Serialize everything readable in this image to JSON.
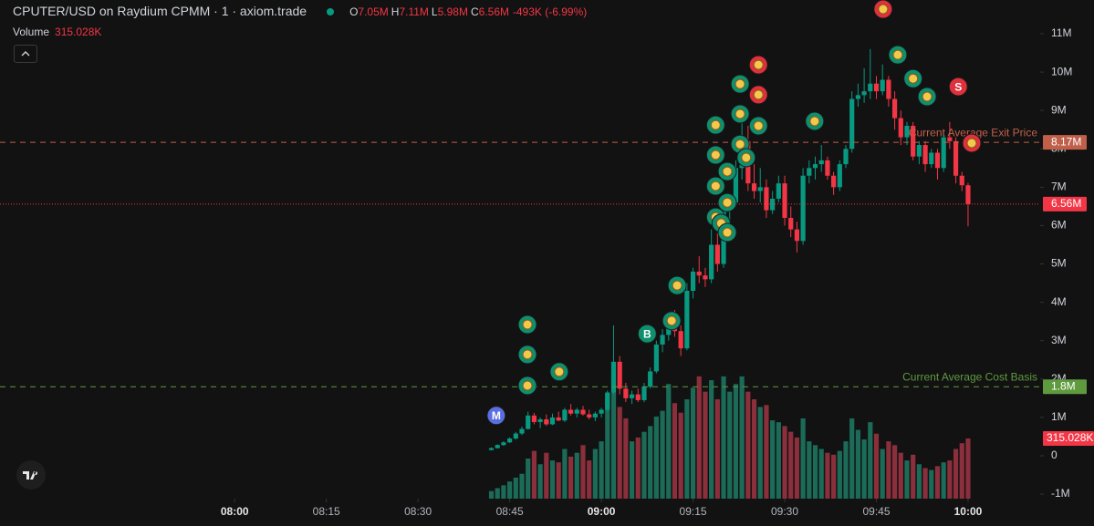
{
  "chart_data": {
    "type": "candlestick",
    "title": "CPUTER/USD on Raydium CPMM · 1 · axiom.trade",
    "legend": [
      {
        "key": "O",
        "value": "7.05M"
      },
      {
        "key": "H",
        "value": "7.11M"
      },
      {
        "key": "L",
        "value": "5.98M"
      },
      {
        "key": "C",
        "value": "6.56M"
      }
    ],
    "change": "-493K (-6.99%)",
    "volume_title": "Volume",
    "volume_label": "315.028K",
    "up_color": "#089981",
    "down_color": "#f23645",
    "volume_up_color": "#1b6b58",
    "volume_down_color": "#8a2f3b",
    "xlim": [
      441.6,
      611.8
    ],
    "xticks": [
      {
        "value": 480,
        "label": "08:00"
      },
      {
        "value": 495,
        "label": "08:15"
      },
      {
        "value": 510,
        "label": "08:30"
      },
      {
        "value": 525,
        "label": "08:45"
      },
      {
        "value": 540,
        "label": "09:00"
      },
      {
        "value": 555,
        "label": "09:15"
      },
      {
        "value": 570,
        "label": "09:30"
      },
      {
        "value": 585,
        "label": "09:45"
      },
      {
        "value": 600,
        "label": "10:00"
      }
    ],
    "ylim": [
      -1117000,
      11879000
    ],
    "yticks": [
      {
        "value": -1000000,
        "label": "-1M"
      },
      0,
      {
        "value": 1000000,
        "label": "1M"
      },
      {
        "value": 2000000,
        "label": "2M"
      },
      {
        "value": 3000000,
        "label": "3M"
      },
      {
        "value": 4000000,
        "label": "4M"
      },
      {
        "value": 5000000,
        "label": "5M"
      },
      {
        "value": 6000000,
        "label": "6M"
      },
      {
        "value": 7000000,
        "label": "7M"
      },
      {
        "value": 8000000,
        "label": "8M"
      },
      {
        "value": 9000000,
        "label": "9M"
      },
      {
        "value": 10000000,
        "label": "10M"
      },
      {
        "value": 11000000,
        "label": "11M"
      }
    ],
    "y2lim": [
      0,
      2610000
    ],
    "x": [
      522,
      523,
      524,
      525,
      526,
      527,
      528,
      529,
      530,
      531,
      532,
      533,
      534,
      535,
      536,
      537,
      538,
      539,
      540,
      541,
      542,
      543,
      544,
      545,
      546,
      547,
      548,
      549,
      550,
      551,
      552,
      553,
      554,
      555,
      556,
      557,
      558,
      559,
      560,
      561,
      562,
      563,
      564,
      565,
      566,
      567,
      568,
      569,
      570,
      571,
      572,
      573,
      574,
      575,
      576,
      577,
      578,
      579,
      580,
      581,
      582,
      583,
      584,
      585,
      586,
      587,
      588,
      589,
      590,
      591,
      592,
      593,
      594,
      595,
      596,
      597,
      598,
      599,
      600
    ],
    "open": [
      150000,
      200000,
      280000,
      350000,
      450000,
      580000,
      700000,
      1050000,
      880000,
      950000,
      820000,
      1000000,
      920000,
      1200000,
      1100000,
      1200000,
      1080000,
      1000000,
      1100000,
      1200000,
      1650000,
      2450000,
      1750000,
      1500000,
      1600000,
      1450000,
      1800000,
      2200000,
      2900000,
      3150000,
      3600000,
      3250000,
      2800000,
      4300000,
      4800000,
      4700000,
      4600000,
      5500000,
      5000000,
      6400000,
      6600000,
      7500000,
      8200000,
      7100000,
      6900000,
      7000000,
      6400000,
      6700000,
      7100000,
      6200000,
      5900000,
      5600000,
      7300000,
      7500000,
      7600000,
      7700000,
      7300000,
      7000000,
      7600000,
      8000000,
      9300000,
      9400000,
      9500000,
      9700000,
      9500000,
      9800000,
      9300000,
      8800000,
      8300000,
      8600000,
      7800000,
      8100000,
      7600000,
      7900000,
      7500000,
      8300000,
      8200000,
      7300000,
      7050000
    ],
    "high": [
      220000,
      300000,
      380000,
      480000,
      620000,
      760000,
      1150000,
      1120000,
      1000000,
      1080000,
      1100000,
      1150000,
      1250000,
      1350000,
      1250000,
      1300000,
      1200000,
      1150000,
      1250000,
      1700000,
      3400000,
      2600000,
      1900000,
      1700000,
      1750000,
      1900000,
      2300000,
      3000000,
      3300000,
      3700000,
      3800000,
      3400000,
      4500000,
      4900000,
      5200000,
      4900000,
      5900000,
      5800000,
      6700000,
      6800000,
      7700000,
      9000000,
      8600000,
      7600000,
      7500000,
      7200000,
      6900000,
      7300000,
      7300000,
      6500000,
      6100000,
      7500000,
      7700000,
      7800000,
      8100000,
      7800000,
      7400000,
      7700000,
      8100000,
      9500000,
      9700000,
      10100000,
      10600000,
      9900000,
      10200000,
      9900000,
      9500000,
      9000000,
      8700000,
      8700000,
      8200000,
      8200000,
      8000000,
      8000000,
      8500000,
      8700000,
      8300000,
      7400000,
      7110000
    ],
    "low": [
      140000,
      190000,
      260000,
      330000,
      420000,
      540000,
      680000,
      820000,
      720000,
      780000,
      800000,
      900000,
      880000,
      1050000,
      1000000,
      1050000,
      950000,
      900000,
      1000000,
      1150000,
      1600000,
      1600000,
      1400000,
      1350000,
      1400000,
      1400000,
      1750000,
      2150000,
      2700000,
      3000000,
      3100000,
      2600000,
      2750000,
      4100000,
      4500000,
      4400000,
      4500000,
      4800000,
      4900000,
      6100000,
      6500000,
      7200000,
      6900000,
      6700000,
      6600000,
      6200000,
      6300000,
      6600000,
      6000000,
      5700000,
      5300000,
      5500000,
      7100000,
      7200000,
      7400000,
      7200000,
      6800000,
      6900000,
      7500000,
      7900000,
      9100000,
      9200000,
      9300000,
      9300000,
      9400000,
      9100000,
      8500000,
      8100000,
      8100000,
      7700000,
      7600000,
      7400000,
      7500000,
      7200000,
      7400000,
      8000000,
      7100000,
      6900000,
      5980000
    ],
    "close": [
      200000,
      280000,
      350000,
      450000,
      580000,
      700000,
      1050000,
      880000,
      950000,
      820000,
      1000000,
      920000,
      1200000,
      1100000,
      1200000,
      1080000,
      1000000,
      1100000,
      1200000,
      1650000,
      2450000,
      1750000,
      1500000,
      1600000,
      1450000,
      1800000,
      2200000,
      2900000,
      3150000,
      3600000,
      3250000,
      2800000,
      4300000,
      4800000,
      4700000,
      4600000,
      5500000,
      5000000,
      6400000,
      6600000,
      7500000,
      8200000,
      7100000,
      6900000,
      7000000,
      6400000,
      6700000,
      7100000,
      6200000,
      5900000,
      5600000,
      7300000,
      7500000,
      7600000,
      7700000,
      7300000,
      7000000,
      7600000,
      8000000,
      9300000,
      9400000,
      9500000,
      9700000,
      9500000,
      9800000,
      9300000,
      8800000,
      8300000,
      8600000,
      7800000,
      8100000,
      7600000,
      7900000,
      7500000,
      8300000,
      8200000,
      7300000,
      7050000,
      6560000
    ],
    "volume": [
      40000,
      55000,
      70000,
      90000,
      110000,
      130000,
      210000,
      250000,
      180000,
      240000,
      200000,
      190000,
      260000,
      220000,
      240000,
      280000,
      200000,
      260000,
      300000,
      550000,
      660000,
      480000,
      420000,
      300000,
      320000,
      350000,
      380000,
      430000,
      460000,
      600000,
      500000,
      450000,
      520000,
      580000,
      640000,
      560000,
      620000,
      520000,
      640000,
      560000,
      600000,
      640000,
      560000,
      520000,
      480000,
      490000,
      410000,
      400000,
      380000,
      350000,
      320000,
      420000,
      300000,
      280000,
      260000,
      240000,
      230000,
      250000,
      300000,
      420000,
      360000,
      310000,
      400000,
      340000,
      260000,
      300000,
      280000,
      240000,
      200000,
      230000,
      180000,
      160000,
      150000,
      170000,
      190000,
      200000,
      260000,
      290000,
      315028
    ],
    "price_lines": [
      {
        "value": 8170000,
        "label": "8.17M",
        "text": "Current Average Exit Price",
        "color": "#c0604a",
        "style": "dashed"
      },
      {
        "value": 6560000,
        "label": "6.56M",
        "color": "#f23645",
        "style": "dotted"
      },
      {
        "value": 1800000,
        "label": "1.8M",
        "text": "Current Average Cost Basis",
        "color": "#5f9a3e",
        "style": "dashed"
      }
    ],
    "markers": [
      {
        "x": 522.8,
        "y": 1050000,
        "color": "#5b6ee1",
        "label": "M"
      },
      {
        "x": 527.9,
        "y": 3420000,
        "color": "#0e8f6e"
      },
      {
        "x": 527.9,
        "y": 2640000,
        "color": "#0e8f6e"
      },
      {
        "x": 527.9,
        "y": 1830000,
        "color": "#0e8f6e"
      },
      {
        "x": 533.1,
        "y": 2190000,
        "color": "#0e8f6e"
      },
      {
        "x": 547.5,
        "y": 3180000,
        "color": "#0e8f6e",
        "label": "B"
      },
      {
        "x": 551.5,
        "y": 3520000,
        "color": "#0e8f6e"
      },
      {
        "x": 552.4,
        "y": 4440000,
        "color": "#0e8f6e"
      },
      {
        "x": 558.7,
        "y": 8620000,
        "color": "#0e8f6e"
      },
      {
        "x": 558.7,
        "y": 7840000,
        "color": "#0e8f6e"
      },
      {
        "x": 558.7,
        "y": 7030000,
        "color": "#0e8f6e"
      },
      {
        "x": 558.7,
        "y": 6220000,
        "color": "#0e8f6e"
      },
      {
        "x": 559.6,
        "y": 6060000,
        "color": "#0e8f6e"
      },
      {
        "x": 560.6,
        "y": 5820000,
        "color": "#0e8f6e"
      },
      {
        "x": 560.6,
        "y": 6600000,
        "color": "#0e8f6e"
      },
      {
        "x": 560.6,
        "y": 7410000,
        "color": "#0e8f6e"
      },
      {
        "x": 562.7,
        "y": 9690000,
        "color": "#0e8f6e"
      },
      {
        "x": 562.7,
        "y": 8910000,
        "color": "#0e8f6e"
      },
      {
        "x": 562.7,
        "y": 8120000,
        "color": "#0e8f6e"
      },
      {
        "x": 563.7,
        "y": 7770000,
        "color": "#0e8f6e"
      },
      {
        "x": 565.7,
        "y": 10190000,
        "color": "#e0303c"
      },
      {
        "x": 565.7,
        "y": 9410000,
        "color": "#e0303c"
      },
      {
        "x": 565.7,
        "y": 8600000,
        "color": "#0e8f6e"
      },
      {
        "x": 574.9,
        "y": 8720000,
        "color": "#0e8f6e"
      },
      {
        "x": 586.1,
        "y": 11640000,
        "color": "#e0303c"
      },
      {
        "x": 588.5,
        "y": 10450000,
        "color": "#0e8f6e"
      },
      {
        "x": 591.0,
        "y": 9830000,
        "color": "#0e8f6e"
      },
      {
        "x": 593.3,
        "y": 9360000,
        "color": "#0e8f6e"
      },
      {
        "x": 598.4,
        "y": 9620000,
        "color": "#e0303c",
        "label": "S"
      },
      {
        "x": 600.6,
        "y": 8150000,
        "color": "#e0303c"
      }
    ]
  }
}
